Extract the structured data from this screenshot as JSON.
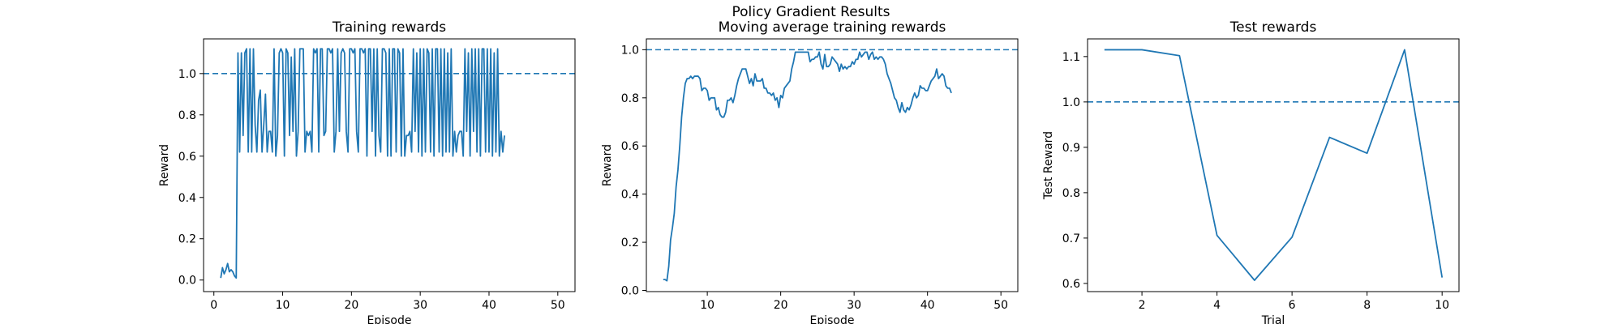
{
  "suptitle": "Policy Gradient Results",
  "chart_data": [
    {
      "type": "line",
      "title": "Training rewards",
      "xlabel": "Episode",
      "ylabel": "Reward",
      "xlim": [
        -1.5,
        52.5
      ],
      "ylim": [
        -0.056,
        1.168
      ],
      "xticks": [
        0,
        10,
        20,
        30,
        40,
        50
      ],
      "yticks": [
        0.0,
        0.2,
        0.4,
        0.6,
        0.8,
        1.0
      ],
      "ytick_decimals": 1,
      "reference_line": 1.0,
      "x_start": 1,
      "x_step": 0.25,
      "values": [
        0.01,
        0.06,
        0.03,
        0.05,
        0.08,
        0.04,
        0.05,
        0.04,
        0.02,
        0.01,
        1.1,
        0.62,
        1.1,
        0.7,
        1.1,
        1.12,
        0.62,
        1.12,
        0.62,
        1.12,
        0.75,
        0.62,
        0.87,
        0.92,
        0.62,
        0.75,
        0.9,
        0.62,
        0.72,
        0.72,
        0.62,
        1.12,
        0.6,
        0.7,
        1.1,
        1.12,
        1.1,
        0.6,
        1.12,
        1.1,
        0.7,
        1.08,
        0.72,
        1.12,
        0.6,
        0.72,
        1.12,
        1.12,
        1.12,
        0.62,
        0.72,
        0.7,
        0.72,
        0.62,
        1.12,
        1.1,
        1.12,
        0.62,
        1.12,
        1.12,
        0.7,
        0.72,
        1.12,
        1.12,
        1.1,
        1.12,
        0.62,
        0.72,
        1.12,
        0.72,
        1.1,
        1.12,
        1.1,
        0.72,
        0.62,
        1.12,
        1.12,
        1.1,
        1.12,
        0.72,
        0.62,
        1.12,
        1.12,
        1.1,
        1.12,
        0.6,
        1.12,
        1.12,
        0.72,
        1.12,
        0.6,
        1.12,
        0.7,
        0.62,
        1.12,
        1.12,
        1.1,
        0.6,
        1.12,
        0.6,
        1.12,
        1.12,
        0.62,
        1.12,
        1.1,
        0.6,
        1.12,
        0.6,
        0.7,
        0.7,
        0.72,
        0.62,
        1.12,
        0.72,
        1.1,
        0.62,
        1.12,
        0.6,
        1.12,
        0.62,
        1.12,
        1.1,
        0.62,
        1.12,
        0.6,
        1.12,
        1.12,
        0.62,
        1.12,
        0.6,
        1.12,
        0.62,
        1.1,
        0.62,
        1.12,
        0.6,
        0.72,
        0.62,
        0.7,
        0.72,
        0.72,
        0.6,
        1.12,
        0.72,
        1.1,
        0.6,
        1.12,
        0.72,
        1.12,
        0.62,
        1.12,
        0.6,
        1.12,
        1.12,
        0.62,
        1.12,
        0.62,
        1.12,
        0.6,
        1.1,
        0.62,
        1.12,
        0.6,
        0.72,
        0.62,
        0.7
      ]
    },
    {
      "type": "line",
      "title": "Moving average training rewards",
      "xlabel": "Episode",
      "ylabel": "Reward",
      "xlim": [
        1.7,
        52.3
      ],
      "ylim": [
        -0.005,
        1.045
      ],
      "xticks": [
        10,
        20,
        30,
        40,
        50
      ],
      "yticks": [
        0.0,
        0.2,
        0.4,
        0.6,
        0.8,
        1.0
      ],
      "ytick_decimals": 1,
      "reference_line": 1.0,
      "x_start": 4,
      "x_step": 0.25,
      "values": [
        0.045,
        0.045,
        0.04,
        0.1,
        0.21,
        0.26,
        0.32,
        0.43,
        0.5,
        0.6,
        0.72,
        0.8,
        0.86,
        0.88,
        0.88,
        0.89,
        0.88,
        0.89,
        0.89,
        0.89,
        0.88,
        0.83,
        0.84,
        0.84,
        0.83,
        0.79,
        0.8,
        0.8,
        0.8,
        0.75,
        0.76,
        0.73,
        0.72,
        0.72,
        0.74,
        0.79,
        0.79,
        0.8,
        0.78,
        0.81,
        0.85,
        0.88,
        0.9,
        0.92,
        0.92,
        0.92,
        0.89,
        0.86,
        0.88,
        0.85,
        0.9,
        0.87,
        0.87,
        0.87,
        0.88,
        0.84,
        0.84,
        0.82,
        0.82,
        0.81,
        0.82,
        0.79,
        0.8,
        0.76,
        0.81,
        0.8,
        0.84,
        0.85,
        0.86,
        0.87,
        0.92,
        0.95,
        0.99,
        0.99,
        0.99,
        0.99,
        0.99,
        0.99,
        0.99,
        0.99,
        0.95,
        0.96,
        0.96,
        0.97,
        0.97,
        0.99,
        0.94,
        0.92,
        0.98,
        0.93,
        0.93,
        0.94,
        0.97,
        0.96,
        0.95,
        0.94,
        0.91,
        0.94,
        0.92,
        0.93,
        0.92,
        0.93,
        0.93,
        0.95,
        0.94,
        0.96,
        0.96,
        0.99,
        0.97,
        0.98,
        0.99,
        0.99,
        0.96,
        0.98,
        0.99,
        0.96,
        0.97,
        0.96,
        0.97,
        0.97,
        0.96,
        0.94,
        0.9,
        0.88,
        0.86,
        0.83,
        0.8,
        0.79,
        0.76,
        0.74,
        0.78,
        0.75,
        0.74,
        0.76,
        0.75,
        0.77,
        0.8,
        0.82,
        0.8,
        0.81,
        0.85,
        0.84,
        0.84,
        0.83,
        0.83,
        0.85,
        0.87,
        0.88,
        0.89,
        0.92,
        0.88,
        0.89,
        0.9,
        0.89,
        0.85,
        0.84,
        0.84,
        0.82
      ]
    },
    {
      "type": "line",
      "title": "Test rewards",
      "xlabel": "Trial",
      "ylabel": "Test Reward",
      "xlim": [
        0.55,
        10.45
      ],
      "ylim": [
        0.582,
        1.139
      ],
      "xticks": [
        2,
        4,
        6,
        8,
        10
      ],
      "yticks": [
        0.6,
        0.7,
        0.8,
        0.9,
        1.0,
        1.1
      ],
      "ytick_decimals": 1,
      "reference_line": 1.0,
      "x": [
        1,
        2,
        3,
        4,
        5,
        6,
        7,
        8,
        9,
        10
      ],
      "values": [
        1.115,
        1.115,
        1.102,
        0.706,
        0.607,
        0.702,
        0.922,
        0.887,
        1.115,
        0.613
      ]
    }
  ]
}
